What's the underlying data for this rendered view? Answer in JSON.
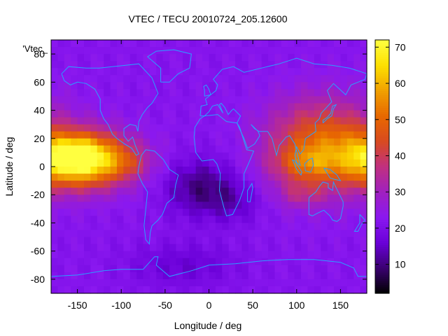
{
  "chart_data": {
    "type": "heatmap",
    "title": "VTEC / TECU 20010724_205.12600",
    "xlabel": "Longitude / deg",
    "ylabel": "Latitude / deg",
    "xlim": [
      -180,
      180
    ],
    "ylim": [
      -90,
      90
    ],
    "x_ticks": [
      -150,
      -100,
      -50,
      0,
      50,
      100,
      150
    ],
    "y_ticks": [
      -80,
      -60,
      -40,
      -20,
      0,
      20,
      40,
      60,
      80
    ],
    "legend_label": "'Vtec_",
    "colorbar": {
      "range": [
        2,
        72
      ],
      "ticks": [
        10,
        20,
        30,
        40,
        50,
        60,
        70
      ],
      "colors": [
        "#000000",
        "#3a0070",
        "#6a00d8",
        "#8a18f0",
        "#a020c0",
        "#c03080",
        "#d84a20",
        "#e86800",
        "#f0a000",
        "#fde000",
        "#ffff40"
      ]
    },
    "blobs": [
      {
        "lon": -145,
        "lat": 5,
        "rlon": 55,
        "rlat": 19,
        "value": 52
      },
      {
        "lon": -155,
        "lat": 8,
        "rlon": 25,
        "rlat": 9,
        "value": 10
      },
      {
        "lon": -90,
        "lat": 2,
        "rlon": 25,
        "rlat": 10,
        "value": 6
      },
      {
        "lon": 130,
        "lat": 15,
        "rlon": 62,
        "rlat": 32,
        "value": 28
      },
      {
        "lon": 110,
        "lat": 2,
        "rlon": 35,
        "rlat": 12,
        "value": 12
      },
      {
        "lon": 105,
        "lat": -20,
        "rlon": 25,
        "rlat": 9,
        "value": 8
      },
      {
        "lon": -10,
        "lat": -15,
        "rlon": 40,
        "rlat": 20,
        "value": -12
      },
      {
        "lon": 30,
        "lat": -25,
        "rlon": 30,
        "rlat": 15,
        "value": -6
      },
      {
        "lon": -30,
        "lat": -70,
        "rlon": 60,
        "rlat": 15,
        "value": -6
      }
    ],
    "base_value": 22,
    "coastlines": [
      {
        "name": "north-america",
        "points": [
          [
            -168,
            66
          ],
          [
            -160,
            71
          ],
          [
            -140,
            70
          ],
          [
            -125,
            70
          ],
          [
            -95,
            72
          ],
          [
            -80,
            73
          ],
          [
            -65,
            63
          ],
          [
            -58,
            52
          ],
          [
            -65,
            45
          ],
          [
            -70,
            42
          ],
          [
            -76,
            37
          ],
          [
            -80,
            32
          ],
          [
            -81,
            25
          ],
          [
            -83,
            29
          ],
          [
            -90,
            30
          ],
          [
            -97,
            27
          ],
          [
            -97,
            22
          ],
          [
            -92,
            18
          ],
          [
            -87,
            21
          ],
          [
            -84,
            15
          ],
          [
            -80,
            9
          ],
          [
            -83,
            8
          ],
          [
            -88,
            13
          ],
          [
            -96,
            16
          ],
          [
            -105,
            20
          ],
          [
            -110,
            23
          ],
          [
            -115,
            30
          ],
          [
            -120,
            34
          ],
          [
            -124,
            40
          ],
          [
            -124,
            48
          ],
          [
            -130,
            55
          ],
          [
            -140,
            59
          ],
          [
            -150,
            60
          ],
          [
            -158,
            58
          ],
          [
            -165,
            61
          ],
          [
            -168,
            66
          ]
        ]
      },
      {
        "name": "greenland",
        "points": [
          [
            -55,
            60
          ],
          [
            -45,
            60
          ],
          [
            -35,
            66
          ],
          [
            -22,
            70
          ],
          [
            -20,
            80
          ],
          [
            -40,
            83
          ],
          [
            -60,
            82
          ],
          [
            -70,
            78
          ],
          [
            -55,
            70
          ],
          [
            -55,
            60
          ]
        ]
      },
      {
        "name": "south-america",
        "points": [
          [
            -77,
            8
          ],
          [
            -72,
            12
          ],
          [
            -62,
            11
          ],
          [
            -52,
            5
          ],
          [
            -45,
            -2
          ],
          [
            -35,
            -6
          ],
          [
            -38,
            -13
          ],
          [
            -40,
            -22
          ],
          [
            -48,
            -26
          ],
          [
            -53,
            -34
          ],
          [
            -58,
            -38
          ],
          [
            -65,
            -42
          ],
          [
            -67,
            -47
          ],
          [
            -68,
            -55
          ],
          [
            -72,
            -52
          ],
          [
            -74,
            -42
          ],
          [
            -72,
            -30
          ],
          [
            -70,
            -18
          ],
          [
            -76,
            -12
          ],
          [
            -81,
            -5
          ],
          [
            -80,
            0
          ],
          [
            -77,
            8
          ]
        ]
      },
      {
        "name": "africa",
        "points": [
          [
            -17,
            21
          ],
          [
            -16,
            28
          ],
          [
            -10,
            34
          ],
          [
            -5,
            36
          ],
          [
            10,
            37
          ],
          [
            20,
            32
          ],
          [
            32,
            31
          ],
          [
            35,
            28
          ],
          [
            43,
            12
          ],
          [
            51,
            11
          ],
          [
            45,
            2
          ],
          [
            40,
            -5
          ],
          [
            40,
            -15
          ],
          [
            35,
            -24
          ],
          [
            27,
            -34
          ],
          [
            20,
            -35
          ],
          [
            17,
            -29
          ],
          [
            12,
            -17
          ],
          [
            13,
            -5
          ],
          [
            9,
            2
          ],
          [
            5,
            5
          ],
          [
            -8,
            4
          ],
          [
            -15,
            10
          ],
          [
            -17,
            21
          ]
        ]
      },
      {
        "name": "eurasia",
        "points": [
          [
            -10,
            36
          ],
          [
            -9,
            43
          ],
          [
            -2,
            44
          ],
          [
            -4,
            48
          ],
          [
            2,
            51
          ],
          [
            8,
            54
          ],
          [
            10,
            58
          ],
          [
            5,
            62
          ],
          [
            15,
            69
          ],
          [
            28,
            71
          ],
          [
            40,
            67
          ],
          [
            60,
            70
          ],
          [
            80,
            73
          ],
          [
            100,
            77
          ],
          [
            120,
            73
          ],
          [
            140,
            72
          ],
          [
            160,
            70
          ],
          [
            180,
            66
          ],
          [
            178,
            62
          ],
          [
            162,
            58
          ],
          [
            156,
            51
          ],
          [
            142,
            59
          ],
          [
            135,
            54
          ],
          [
            140,
            46
          ],
          [
            128,
            38
          ],
          [
            126,
            34
          ],
          [
            121,
            31
          ],
          [
            122,
            25
          ],
          [
            110,
            20
          ],
          [
            108,
            12
          ],
          [
            104,
            9
          ],
          [
            100,
            14
          ],
          [
            98,
            8
          ],
          [
            100,
            3
          ],
          [
            104,
            1
          ],
          [
            98,
            16
          ],
          [
            92,
            22
          ],
          [
            88,
            21
          ],
          [
            80,
            15
          ],
          [
            77,
            8
          ],
          [
            72,
            20
          ],
          [
            67,
            25
          ],
          [
            57,
            25
          ],
          [
            52,
            27
          ],
          [
            48,
            30
          ],
          [
            56,
            25
          ],
          [
            58,
            22
          ],
          [
            52,
            16
          ],
          [
            44,
            13
          ],
          [
            40,
            20
          ],
          [
            34,
            28
          ],
          [
            32,
            31
          ],
          [
            36,
            36
          ],
          [
            28,
            41
          ],
          [
            26,
            40
          ],
          [
            22,
            37
          ],
          [
            18,
            42
          ],
          [
            14,
            45
          ],
          [
            12,
            44
          ],
          [
            16,
            38
          ],
          [
            10,
            44
          ],
          [
            4,
            43
          ],
          [
            0,
            39
          ],
          [
            -5,
            36
          ],
          [
            -10,
            36
          ]
        ]
      },
      {
        "name": "great-britain",
        "points": [
          [
            -5,
            50
          ],
          [
            2,
            51
          ],
          [
            0,
            55
          ],
          [
            -3,
            58
          ],
          [
            -6,
            57
          ],
          [
            -5,
            54
          ],
          [
            -5,
            50
          ]
        ]
      },
      {
        "name": "japan",
        "points": [
          [
            130,
            31
          ],
          [
            135,
            34
          ],
          [
            140,
            36
          ],
          [
            142,
            41
          ],
          [
            145,
            44
          ],
          [
            141,
            43
          ],
          [
            139,
            38
          ],
          [
            135,
            35
          ],
          [
            130,
            33
          ],
          [
            130,
            31
          ]
        ]
      },
      {
        "name": "madagascar",
        "points": [
          [
            44,
            -25
          ],
          [
            47,
            -25
          ],
          [
            50,
            -15
          ],
          [
            49,
            -12
          ],
          [
            44,
            -17
          ],
          [
            44,
            -25
          ]
        ]
      },
      {
        "name": "australia",
        "points": [
          [
            114,
            -22
          ],
          [
            114,
            -34
          ],
          [
            118,
            -35
          ],
          [
            124,
            -33
          ],
          [
            131,
            -31
          ],
          [
            138,
            -35
          ],
          [
            141,
            -38
          ],
          [
            146,
            -39
          ],
          [
            150,
            -37
          ],
          [
            153,
            -28
          ],
          [
            153,
            -25
          ],
          [
            145,
            -15
          ],
          [
            142,
            -11
          ],
          [
            141,
            -17
          ],
          [
            136,
            -15
          ],
          [
            136,
            -12
          ],
          [
            130,
            -11
          ],
          [
            126,
            -14
          ],
          [
            122,
            -18
          ],
          [
            114,
            -22
          ]
        ]
      },
      {
        "name": "new-zealand",
        "points": [
          [
            172,
            -34
          ],
          [
            178,
            -38
          ],
          [
            174,
            -41
          ],
          [
            170,
            -46
          ],
          [
            166,
            -46
          ],
          [
            172,
            -40
          ],
          [
            172,
            -34
          ]
        ]
      },
      {
        "name": "borneo",
        "points": [
          [
            109,
            2
          ],
          [
            114,
            5
          ],
          [
            118,
            6
          ],
          [
            119,
            1
          ],
          [
            116,
            -4
          ],
          [
            110,
            -3
          ],
          [
            109,
            2
          ]
        ]
      },
      {
        "name": "sumatra",
        "points": [
          [
            95,
            5
          ],
          [
            98,
            4
          ],
          [
            106,
            -4
          ],
          [
            105,
            -6
          ],
          [
            100,
            -2
          ],
          [
            95,
            5
          ]
        ]
      },
      {
        "name": "new-guinea",
        "points": [
          [
            131,
            -1
          ],
          [
            138,
            -2
          ],
          [
            146,
            -6
          ],
          [
            150,
            -10
          ],
          [
            143,
            -9
          ],
          [
            138,
            -8
          ],
          [
            131,
            -1
          ]
        ]
      },
      {
        "name": "antarctica",
        "points": [
          [
            -180,
            -78
          ],
          [
            -150,
            -77
          ],
          [
            -120,
            -74
          ],
          [
            -100,
            -73
          ],
          [
            -75,
            -73
          ],
          [
            -62,
            -64
          ],
          [
            -58,
            -64
          ],
          [
            -60,
            -70
          ],
          [
            -45,
            -78
          ],
          [
            -20,
            -74
          ],
          [
            0,
            -70
          ],
          [
            30,
            -69
          ],
          [
            60,
            -67
          ],
          [
            90,
            -66
          ],
          [
            120,
            -66
          ],
          [
            150,
            -68
          ],
          [
            165,
            -72
          ],
          [
            170,
            -78
          ],
          [
            180,
            -78
          ]
        ]
      }
    ]
  }
}
